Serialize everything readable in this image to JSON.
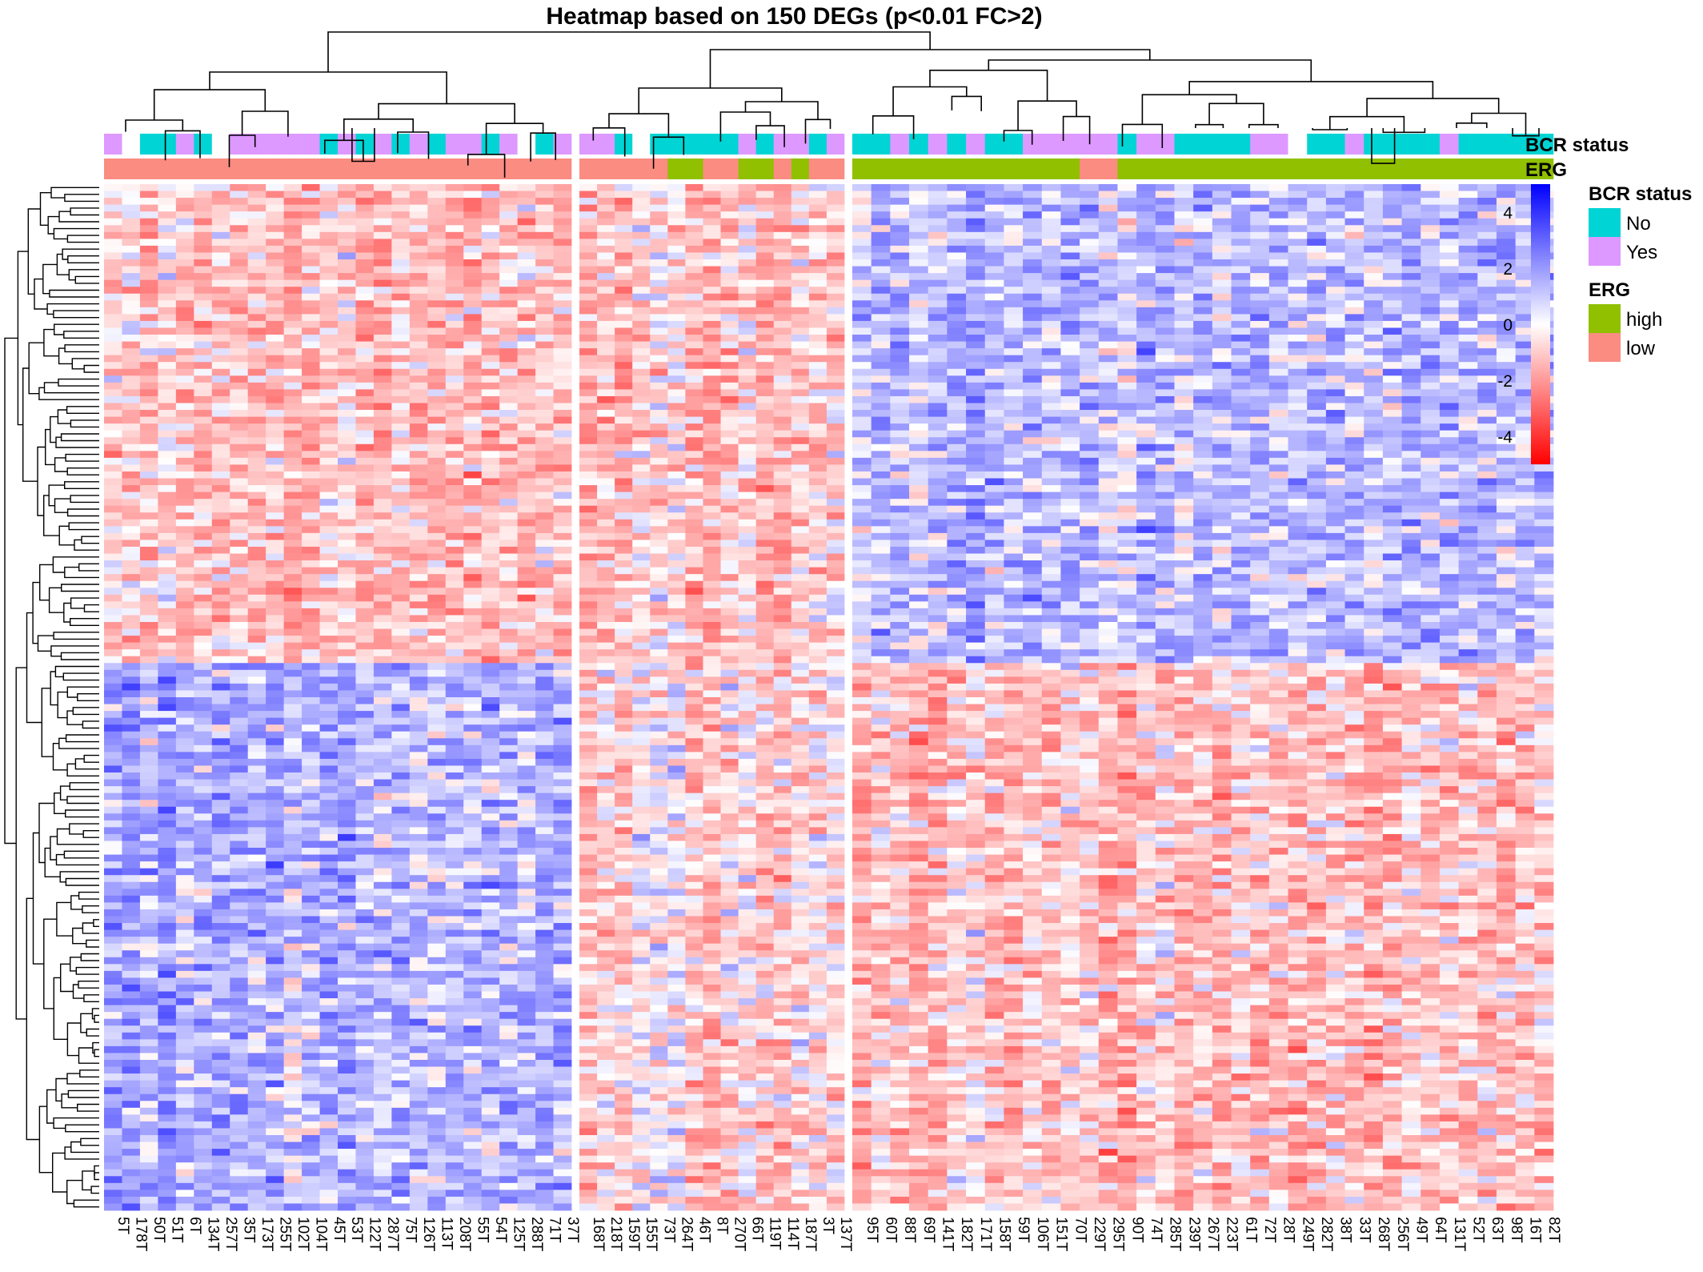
{
  "chart_data": {
    "type": "heatmap",
    "title": "Heatmap based on 150 DEGs (p<0.01 FC>2)",
    "n_rows": 150,
    "column_groups": [
      {
        "samples": [
          "5T",
          "178T",
          "50T",
          "51T",
          "6T",
          "134T",
          "257T",
          "35T",
          "173T",
          "255T",
          "102T",
          "104T",
          "45T",
          "53T",
          "122T",
          "287T",
          "75T",
          "126T",
          "113T",
          "208T",
          "55T",
          "54T",
          "125T",
          "288T",
          "71T",
          "37T"
        ],
        "bcr_status": [
          "Yes",
          "",
          "No",
          "No",
          "Yes",
          "No",
          "",
          "Yes",
          "Yes",
          "Yes",
          "Yes",
          "Yes",
          "No",
          "Yes",
          "No",
          "Yes",
          "No",
          "Yes",
          "No",
          "Yes",
          "Yes",
          "No",
          "Yes",
          "",
          "No",
          "Yes"
        ],
        "erg": [
          "low",
          "low",
          "low",
          "low",
          "low",
          "low",
          "low",
          "low",
          "low",
          "low",
          "low",
          "low",
          "low",
          "low",
          "low",
          "low",
          "low",
          "low",
          "low",
          "low",
          "low",
          "low",
          "low",
          "low",
          "low",
          "low"
        ],
        "profile": "low-top"
      },
      {
        "samples": [
          "168T",
          "218T",
          "159T",
          "155T",
          "73T",
          "264T",
          "46T",
          "8T",
          "270T",
          "66T",
          "119T",
          "114T",
          "187T",
          "3T",
          "137T"
        ],
        "bcr_status": [
          "Yes",
          "Yes",
          "No",
          "",
          "No",
          "No",
          "No",
          "No",
          "No",
          "Yes",
          "No",
          "Yes",
          "Yes",
          "No",
          "Yes"
        ],
        "erg": [
          "low",
          "low",
          "low",
          "low",
          "low",
          "high",
          "high",
          "low",
          "low",
          "high",
          "high",
          "low",
          "high",
          "low",
          "low"
        ],
        "profile": "low-top-mixed"
      },
      {
        "samples": [
          "95T",
          "60T",
          "88T",
          "69T",
          "141T",
          "182T",
          "171T",
          "158T",
          "59T",
          "106T",
          "151T",
          "70T",
          "229T",
          "295T",
          "90T",
          "74T",
          "285T",
          "239T",
          "267T",
          "223T",
          "61T",
          "72T",
          "28T",
          "249T",
          "282T",
          "38T",
          "33T",
          "268T",
          "256T",
          "49T",
          "64T",
          "131T",
          "52T",
          "63T",
          "98T",
          "16T",
          "82T"
        ],
        "bcr_status": [
          "No",
          "No",
          "Yes",
          "No",
          "Yes",
          "No",
          "Yes",
          "No",
          "No",
          "Yes",
          "Yes",
          "Yes",
          "Yes",
          "Yes",
          "No",
          "Yes",
          "Yes",
          "No",
          "No",
          "No",
          "No",
          "Yes",
          "Yes",
          "",
          "No",
          "No",
          "Yes",
          "No",
          "No",
          "No",
          "No",
          "Yes",
          "No",
          "No",
          "No",
          "No",
          "No"
        ],
        "erg": [
          "high",
          "high",
          "high",
          "high",
          "high",
          "high",
          "high",
          "high",
          "high",
          "high",
          "high",
          "high",
          "low",
          "low",
          "high",
          "high",
          "high",
          "high",
          "high",
          "high",
          "high",
          "high",
          "high",
          "high",
          "high",
          "high",
          "high",
          "high",
          "high",
          "high",
          "high",
          "high",
          "high",
          "high",
          "high",
          "high",
          "high"
        ],
        "profile": "high-top"
      }
    ],
    "annotation_tracks": [
      "BCR status",
      "ERG"
    ],
    "color_scale": {
      "min": -5,
      "max": 5,
      "ticks": [
        4,
        2,
        0,
        -2,
        -4
      ],
      "colors": [
        "#ff0000",
        "#ffffff",
        "#0000ff"
      ]
    },
    "legend": {
      "position": "right",
      "groups": [
        {
          "title": "BCR status",
          "items": [
            {
              "label": "No",
              "color": "#00d4d4"
            },
            {
              "label": "Yes",
              "color": "#dd99ff"
            }
          ]
        },
        {
          "title": "ERG",
          "items": [
            {
              "label": "high",
              "color": "#90c000"
            },
            {
              "label": "low",
              "color": "#fa8c82"
            }
          ]
        }
      ]
    }
  }
}
